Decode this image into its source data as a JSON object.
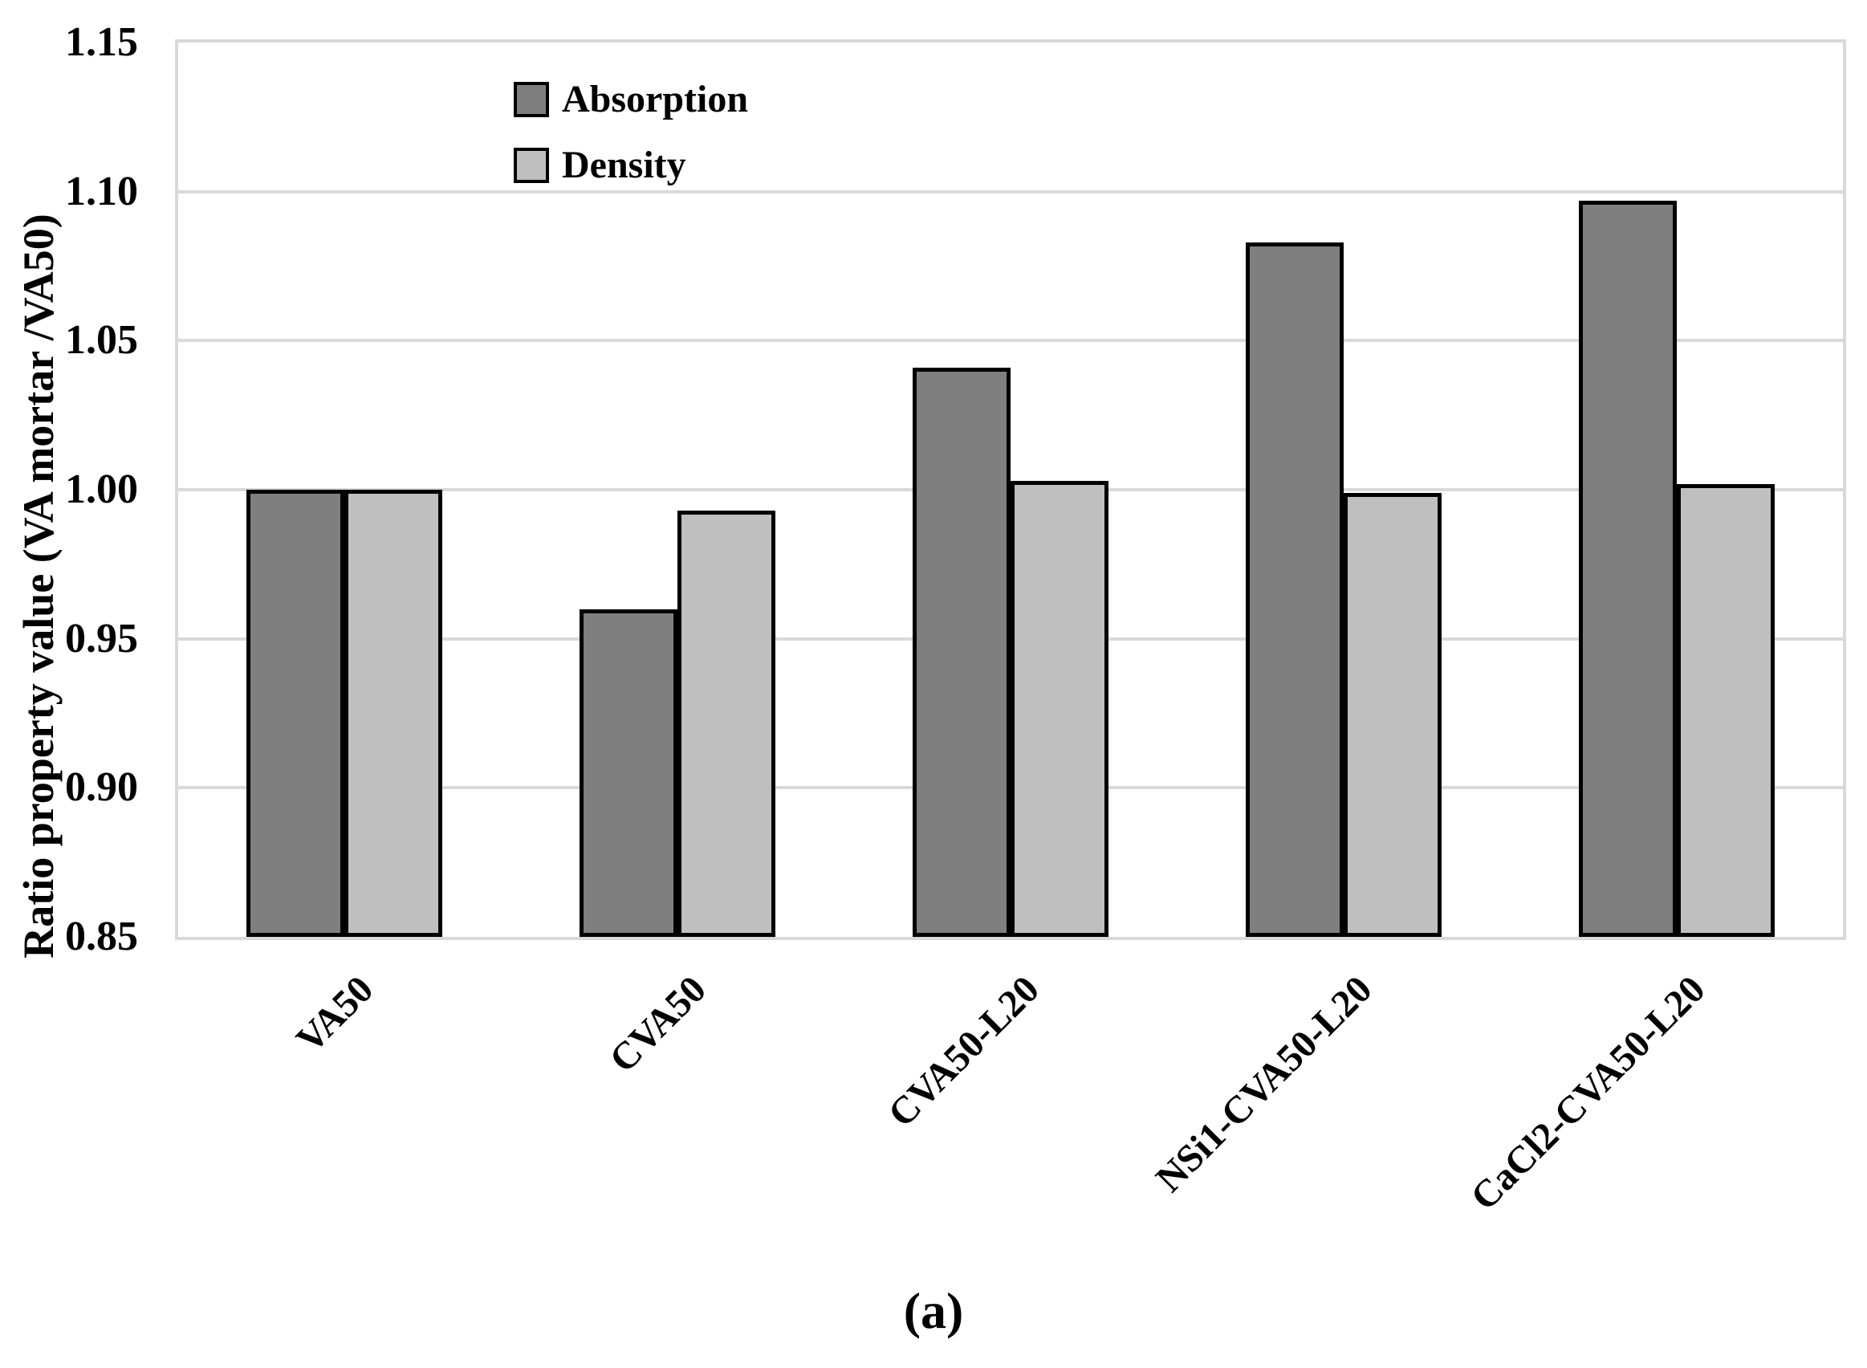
{
  "figure": {
    "caption": "(a)"
  },
  "chart_data": {
    "type": "bar",
    "title": "",
    "xlabel": "",
    "ylabel": "Ratio property value (VA mortar /VA50)",
    "categories": [
      "VA50",
      "CVA50",
      "CVA50-L20",
      "NSi1-CVA50-L20",
      "CaCl2-CVA50-L20"
    ],
    "series": [
      {
        "name": "Absorption",
        "color": "#7f7f7f",
        "values": [
          1.0,
          0.96,
          1.041,
          1.083,
          1.097
        ]
      },
      {
        "name": "Density",
        "color": "#bfbfbf",
        "values": [
          1.0,
          0.993,
          1.003,
          0.999,
          1.002
        ]
      }
    ],
    "ylim": [
      0.85,
      1.15
    ],
    "ytick_step": 0.05,
    "yticks": [
      1.15,
      1.1,
      1.05,
      1.0,
      0.95,
      0.9,
      0.85
    ],
    "ytick_decimals": 2,
    "grid": "horizontal",
    "gridline_color": "#d9d9d9",
    "bar_border_color": "#000000",
    "legend": {
      "position": "inside-top",
      "entries": [
        "Absorption",
        "Density"
      ]
    }
  }
}
